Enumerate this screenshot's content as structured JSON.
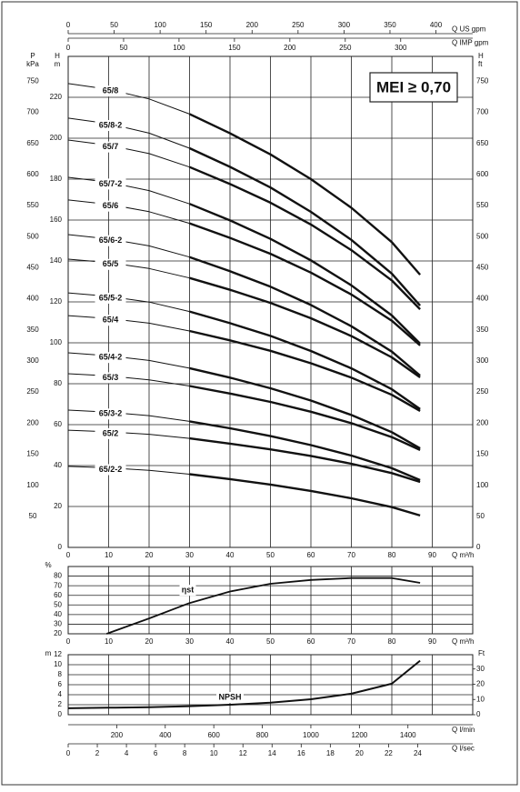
{
  "chart_data": [
    {
      "type": "line",
      "annotation": "MEI ≥ 0,70",
      "x_label": "Q m³/h",
      "xlim": [
        0,
        100
      ],
      "xticks": [
        0,
        10,
        20,
        30,
        40,
        50,
        60,
        70,
        80,
        90
      ],
      "y_label": {
        "name": "H",
        "unit": "m"
      },
      "ylim": [
        0,
        240
      ],
      "yticks": [
        0,
        20,
        40,
        60,
        80,
        100,
        120,
        140,
        160,
        180,
        200,
        220
      ],
      "grid": true,
      "p_axis": {
        "name": "P",
        "unit": "kPa",
        "lim": [
          0,
          790
        ],
        "ticks": [
          50,
          100,
          150,
          200,
          250,
          300,
          350,
          400,
          450,
          500,
          550,
          600,
          650,
          700,
          750
        ]
      },
      "ft_axis": {
        "name": "H",
        "unit": "ft",
        "lim": [
          0,
          790
        ],
        "ticks": [
          0,
          50,
          100,
          150,
          200,
          250,
          300,
          350,
          400,
          450,
          500,
          550,
          600,
          650,
          700,
          750
        ]
      },
      "us_gpm_axis": {
        "label": "Q US gpm",
        "lim": [
          0,
          440
        ],
        "ticks": [
          0,
          50,
          100,
          150,
          200,
          250,
          300,
          350,
          400
        ]
      },
      "imp_gpm_axis": {
        "label": "Q IMP gpm",
        "lim": [
          0,
          365
        ],
        "ticks": [
          0,
          50,
          100,
          150,
          200,
          250,
          300
        ]
      },
      "x": [
        0,
        10,
        20,
        30,
        40,
        50,
        60,
        70,
        80,
        87
      ],
      "series": [
        {
          "name": "65/8",
          "color": "#111111",
          "values": [
            226.7,
            223.9,
            219.2,
            211.8,
            202.4,
            192.1,
            180.0,
            166.0,
            149.2,
            133.3
          ]
        },
        {
          "name": "65/8-2",
          "color": "#111111",
          "values": [
            209.8,
            207.1,
            202.5,
            195.1,
            186.0,
            175.9,
            164.0,
            150.3,
            133.8,
            118.2
          ]
        },
        {
          "name": "65/7",
          "color": "#111111",
          "values": [
            199.1,
            196.6,
            192.5,
            185.9,
            177.6,
            168.5,
            157.8,
            145.3,
            130.5,
            116.4
          ]
        },
        {
          "name": "65/7-2",
          "color": "#111111",
          "values": [
            180.9,
            178.5,
            174.4,
            167.9,
            159.8,
            150.8,
            140.3,
            128.1,
            113.4,
            99.6
          ]
        },
        {
          "name": "65/6",
          "color": "#111111",
          "values": [
            169.8,
            167.7,
            164.1,
            158.4,
            151.3,
            143.5,
            134.3,
            123.6,
            110.8,
            98.7
          ]
        },
        {
          "name": "65/6-2",
          "color": "#111111",
          "values": [
            152.9,
            150.8,
            147.4,
            141.9,
            135.0,
            127.4,
            118.5,
            108.1,
            95.7,
            84.0
          ]
        },
        {
          "name": "65/5",
          "color": "#111111",
          "values": [
            140.9,
            139.2,
            136.3,
            131.7,
            125.9,
            119.5,
            112.0,
            103.3,
            92.9,
            83.1
          ]
        },
        {
          "name": "65/5-2",
          "color": "#111111",
          "values": [
            124.4,
            122.7,
            119.9,
            115.3,
            109.6,
            103.4,
            96.0,
            87.5,
            77.3,
            67.6
          ]
        },
        {
          "name": "65/4",
          "color": "#111111",
          "values": [
            113.3,
            111.9,
            109.6,
            105.8,
            101.2,
            96.1,
            90.0,
            83.0,
            74.6,
            66.7
          ]
        },
        {
          "name": "65/4-2",
          "color": "#111111",
          "values": [
            95.1,
            93.7,
            91.4,
            87.6,
            83.0,
            77.8,
            71.8,
            64.7,
            56.3,
            48.4
          ]
        },
        {
          "name": "65/3",
          "color": "#111111",
          "values": [
            84.9,
            83.8,
            81.9,
            78.9,
            75.2,
            71.1,
            66.3,
            60.7,
            53.9,
            47.6
          ]
        },
        {
          "name": "65/3-2",
          "color": "#111111",
          "values": [
            67.1,
            66.1,
            64.4,
            61.6,
            58.2,
            54.4,
            50.0,
            44.9,
            38.7,
            32.9
          ]
        },
        {
          "name": "65/2",
          "color": "#111111",
          "values": [
            57.3,
            56.5,
            55.3,
            53.3,
            50.7,
            47.9,
            44.7,
            40.9,
            36.3,
            32.0
          ]
        },
        {
          "name": "65/2-2",
          "color": "#111111",
          "values": [
            39.6,
            38.9,
            37.7,
            35.8,
            33.4,
            30.7,
            27.6,
            24.0,
            19.7,
            15.6
          ]
        }
      ]
    },
    {
      "type": "line",
      "x_label": "Q m³/h",
      "xlim": [
        0,
        100
      ],
      "xticks": [
        0,
        10,
        20,
        30,
        40,
        50,
        60,
        70,
        80,
        90
      ],
      "y_label": "%",
      "ylim": [
        20,
        90
      ],
      "yticks": [
        20,
        30,
        40,
        50,
        60,
        70,
        80
      ],
      "grid": true,
      "x": [
        9.5,
        20,
        30,
        40,
        50,
        60,
        70,
        80,
        87
      ],
      "series": [
        {
          "name": "ηst",
          "color": "#111111",
          "values": [
            20,
            36,
            52,
            64,
            72,
            76,
            78,
            78,
            73
          ]
        }
      ]
    },
    {
      "type": "line",
      "xlim": [
        0,
        100
      ],
      "x_gridlines": [
        10,
        20,
        30,
        40,
        50,
        60,
        70,
        80,
        90
      ],
      "y_label": "m",
      "ylim": [
        0,
        12
      ],
      "yticks": [
        0,
        2,
        4,
        6,
        8,
        10,
        12
      ],
      "grid": true,
      "ft_axis": {
        "name": "Ft",
        "lim": [
          0,
          39.37
        ],
        "ticks": [
          0,
          10,
          20,
          30
        ]
      },
      "lmin_axis": {
        "label": "Q l/min",
        "lim": [
          0,
          1667
        ],
        "ticks": [
          200,
          400,
          600,
          800,
          1000,
          1200,
          1400
        ]
      },
      "lsec_axis": {
        "label": "Q l/sec",
        "lim": [
          0,
          27.78
        ],
        "ticks": [
          0,
          2,
          4,
          6,
          8,
          10,
          12,
          14,
          16,
          18,
          20,
          22,
          24
        ]
      },
      "x": [
        0,
        10,
        20,
        30,
        40,
        50,
        60,
        70,
        80,
        87
      ],
      "series": [
        {
          "name": "NPSH",
          "color": "#111111",
          "values": [
            1.3,
            1.4,
            1.5,
            1.7,
            2.0,
            2.4,
            3.1,
            4.2,
            6.2,
            10.8
          ]
        }
      ]
    }
  ]
}
